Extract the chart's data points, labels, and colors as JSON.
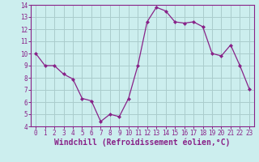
{
  "x": [
    0,
    1,
    2,
    3,
    4,
    5,
    6,
    7,
    8,
    9,
    10,
    11,
    12,
    13,
    14,
    15,
    16,
    17,
    18,
    19,
    20,
    21,
    22,
    23
  ],
  "y": [
    10.0,
    9.0,
    9.0,
    8.3,
    7.9,
    6.3,
    6.1,
    4.4,
    5.0,
    4.8,
    6.3,
    9.0,
    12.6,
    13.8,
    13.5,
    12.6,
    12.5,
    12.6,
    12.2,
    10.0,
    9.8,
    10.7,
    9.0,
    7.1
  ],
  "line_color": "#882288",
  "marker": "D",
  "marker_size": 2.0,
  "bg_color": "#cceeee",
  "grid_color": "#aacccc",
  "xlabel": "Windchill (Refroidissement éolien,°C)",
  "xlabel_color": "#882288",
  "ylim": [
    4,
    14
  ],
  "xlim_min": -0.5,
  "xlim_max": 23.5,
  "yticks": [
    4,
    5,
    6,
    7,
    8,
    9,
    10,
    11,
    12,
    13,
    14
  ],
  "xticks": [
    0,
    1,
    2,
    3,
    4,
    5,
    6,
    7,
    8,
    9,
    10,
    11,
    12,
    13,
    14,
    15,
    16,
    17,
    18,
    19,
    20,
    21,
    22,
    23
  ],
  "tick_color": "#882288",
  "tick_fontsize": 5.5,
  "xlabel_fontsize": 7.0,
  "spine_color": "#882288",
  "linewidth": 0.9
}
